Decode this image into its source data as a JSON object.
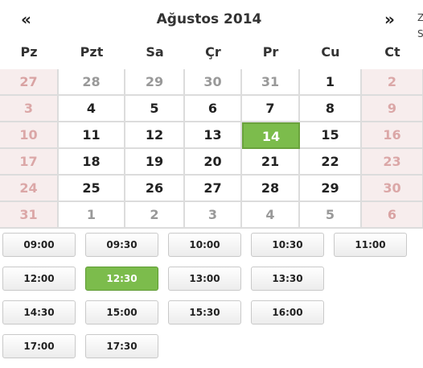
{
  "header": {
    "prev": "«",
    "title": "Ağustos 2014",
    "next": "»",
    "side_text_1": "Z",
    "side_text_2": "S"
  },
  "weekdays": [
    "Pz",
    "Pzt",
    "Sa",
    "Çr",
    "Pr",
    "Cu",
    "Ct"
  ],
  "weeks": [
    [
      "27",
      "28",
      "29",
      "30",
      "31",
      "1",
      "2"
    ],
    [
      "3",
      "4",
      "5",
      "6",
      "7",
      "8",
      "9"
    ],
    [
      "10",
      "11",
      "12",
      "13",
      "14",
      "15",
      "16"
    ],
    [
      "17",
      "18",
      "19",
      "20",
      "21",
      "22",
      "23"
    ],
    [
      "24",
      "25",
      "26",
      "27",
      "28",
      "29",
      "30"
    ],
    [
      "31",
      "1",
      "2",
      "3",
      "4",
      "5",
      "6"
    ]
  ],
  "selected_day": "14",
  "time_slots": [
    [
      "09:00",
      "09:30",
      "10:00",
      "10:30",
      "11:00"
    ],
    [
      "12:00",
      "12:30",
      "13:00",
      "13:30"
    ],
    [
      "14:30",
      "15:00",
      "15:30",
      "16:00"
    ],
    [
      "17:00",
      "17:30"
    ]
  ],
  "selected_time": "12:30",
  "colors": {
    "accent": "#7cbc4c",
    "weekend_bg": "#f7eded",
    "weekend_text": "#dba7a7"
  }
}
